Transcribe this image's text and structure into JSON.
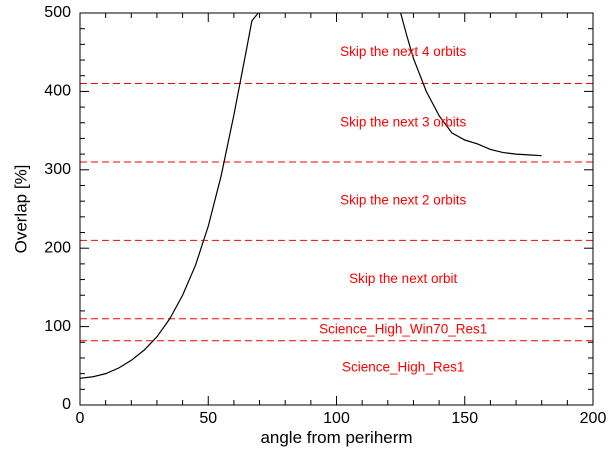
{
  "chart_data": {
    "type": "line",
    "title": "",
    "xlabel": "angle from periherm",
    "ylabel": "Overlap [%]",
    "xlim": [
      0,
      200
    ],
    "ylim": [
      0,
      500
    ],
    "x_ticks": [
      0,
      50,
      100,
      150,
      200
    ],
    "y_ticks": [
      0,
      100,
      200,
      300,
      400,
      500
    ],
    "x_tick_labels": [
      "0",
      "50",
      "100",
      "150",
      "200"
    ],
    "y_tick_labels": [
      "0",
      "100",
      "200",
      "300",
      "400",
      "500"
    ],
    "grid": false,
    "legend": "none",
    "series": [
      {
        "segment": "left-branch",
        "color": "#000000",
        "x": [
          0,
          5,
          10,
          15,
          20,
          25,
          30,
          35,
          40,
          45,
          50,
          55,
          60,
          65,
          67,
          69.5
        ],
        "y": [
          34,
          36,
          40,
          47,
          57,
          70,
          87,
          110,
          140,
          178,
          228,
          292,
          370,
          455,
          490,
          500
        ]
      },
      {
        "segment": "right-branch",
        "color": "#000000",
        "x": [
          125,
          127.5,
          130,
          135,
          140,
          145,
          150,
          155,
          160,
          165,
          170,
          175,
          180
        ],
        "y": [
          500,
          470,
          442,
          400,
          369,
          347,
          338,
          333,
          326,
          322,
          320,
          319,
          318
        ]
      }
    ],
    "thresholds": {
      "color": "#ff0000",
      "dash": "dashed",
      "values": [
        82,
        110,
        210,
        310,
        410
      ]
    },
    "annotations": [
      {
        "text": "Skip the next 4 orbits",
        "x": 126,
        "y": 450
      },
      {
        "text": "Skip the next 3 orbits",
        "x": 126,
        "y": 360
      },
      {
        "text": "Skip the next 2 orbits",
        "x": 126,
        "y": 260
      },
      {
        "text": "Skip the next orbit",
        "x": 126,
        "y": 160
      },
      {
        "text": "Science_High_Win70_Res1",
        "x": 126,
        "y": 96
      },
      {
        "text": "Science_High_Res1",
        "x": 126,
        "y": 47
      }
    ],
    "colors": {
      "curve": "#000000",
      "threshold": "#ff0000",
      "annotation": "#ff0000",
      "axis": "#000000"
    }
  }
}
